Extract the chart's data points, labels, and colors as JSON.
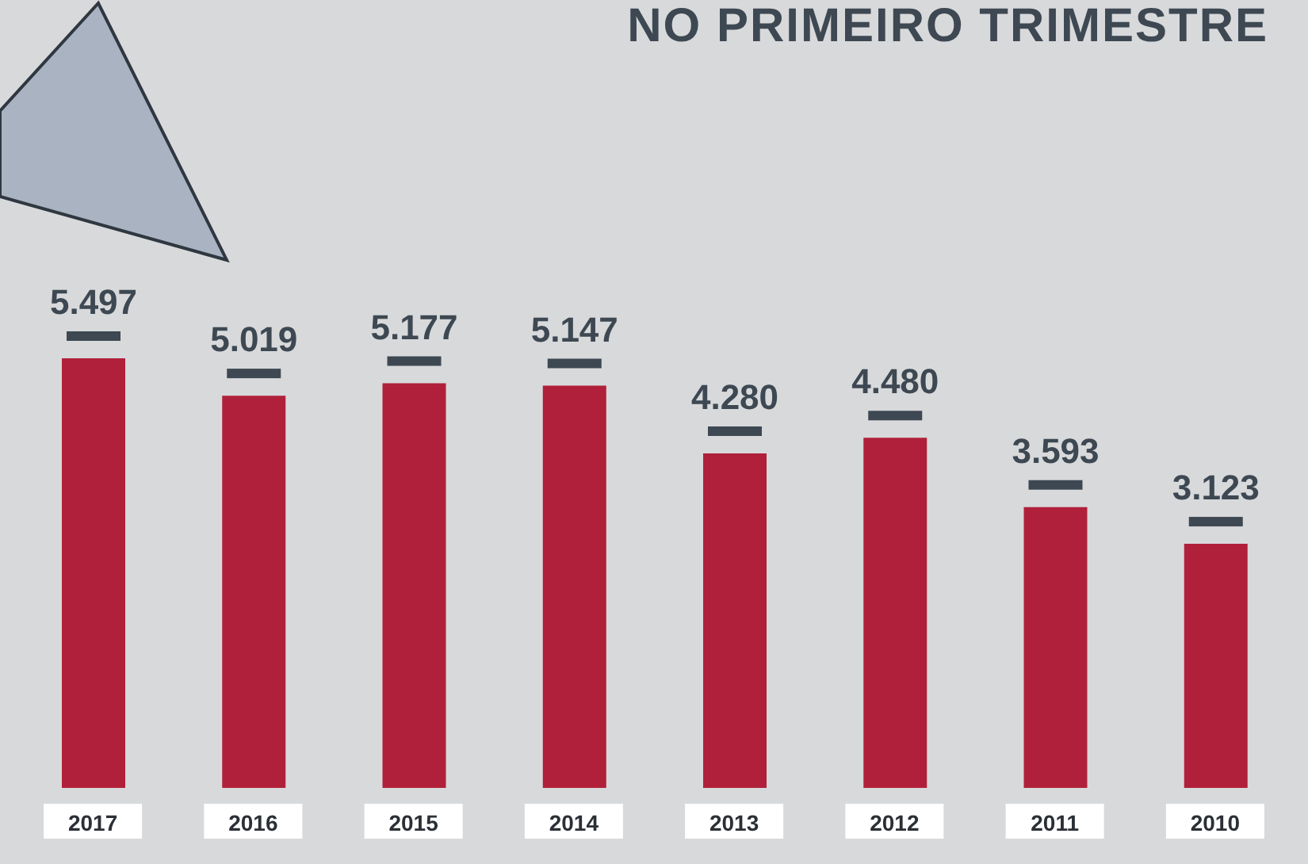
{
  "chart_data": {
    "type": "bar",
    "title": "NO PRIMEIRO TRIMESTRE",
    "categories": [
      "2017",
      "2016",
      "2015",
      "2014",
      "2013",
      "2012",
      "2011",
      "2010"
    ],
    "values": [
      5497,
      5019,
      5177,
      5147,
      4280,
      4480,
      3593,
      3123
    ],
    "value_labels": [
      "5.497",
      "5.019",
      "5.177",
      "5.147",
      "4.280",
      "4.480",
      "3.593",
      "3.123"
    ],
    "color": "#b0203a"
  }
}
